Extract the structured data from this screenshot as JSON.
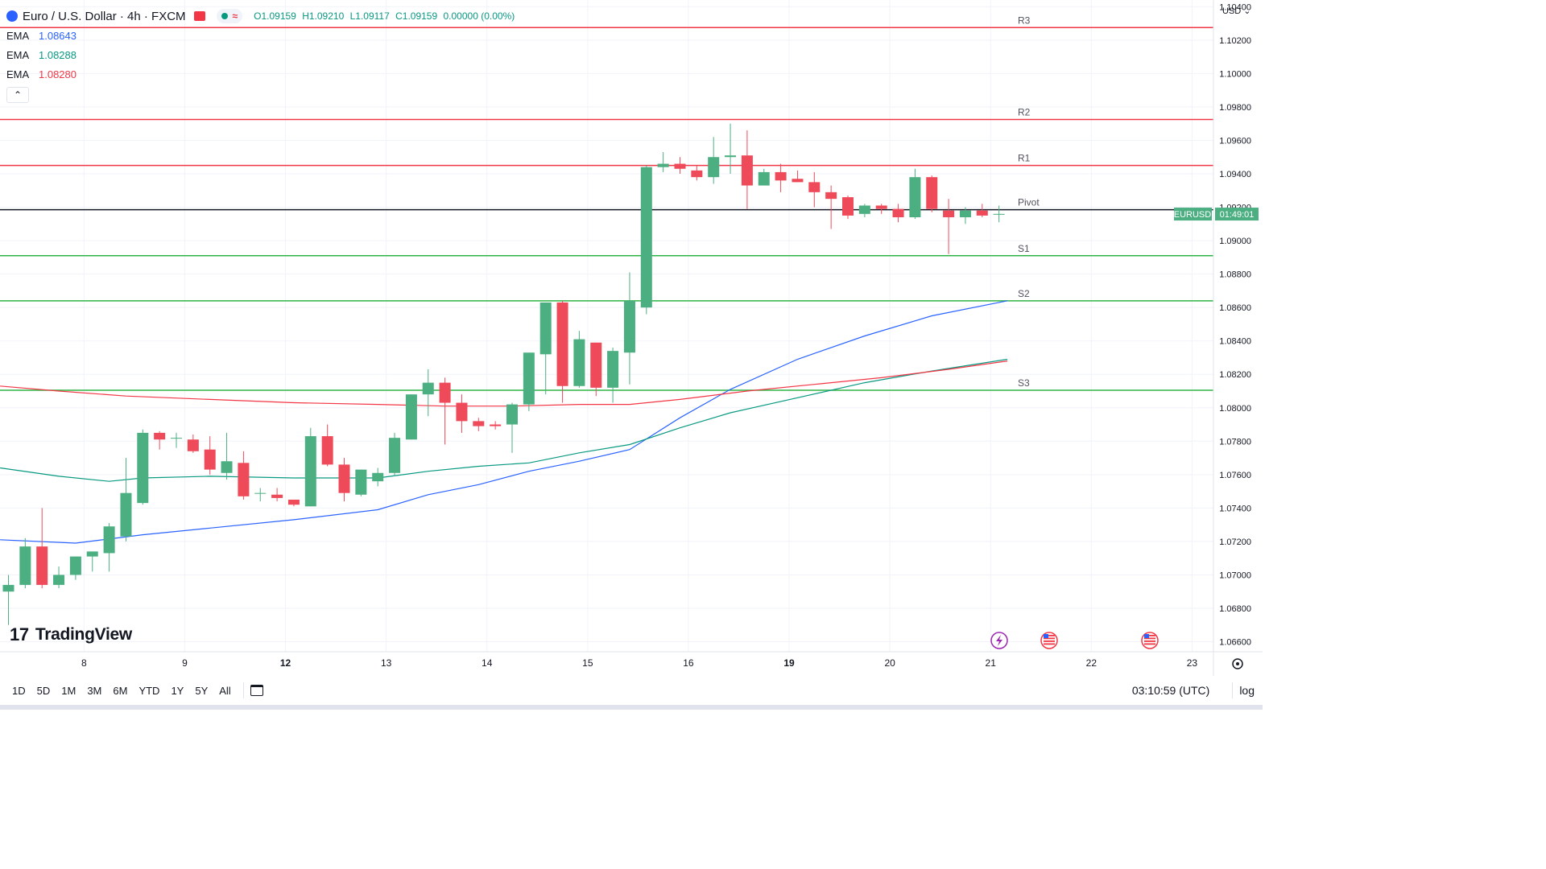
{
  "header": {
    "symbol_title": "Euro / U.S. Dollar · 4h · FXCM",
    "ohlc": {
      "open": "O1.09159",
      "high": "H1.09210",
      "low": "L1.09117",
      "close": "C1.09159",
      "change": "0.00000 (0.00%)"
    }
  },
  "indicators": [
    {
      "name": "EMA",
      "value": "1.08643",
      "color": "#2962ff"
    },
    {
      "name": "EMA",
      "value": "1.08288",
      "color": "#089981"
    },
    {
      "name": "EMA",
      "value": "1.08280",
      "color": "#f23645"
    }
  ],
  "price_axis": {
    "currency": "USD",
    "ticks": [
      "1.10400",
      "1.10200",
      "1.10000",
      "1.09800",
      "1.09600",
      "1.09400",
      "1.09200",
      "1.09000",
      "1.08800",
      "1.08600",
      "1.08400",
      "1.08200",
      "1.08000",
      "1.07800",
      "1.07600",
      "1.07400",
      "1.07200",
      "1.07000",
      "1.06800",
      "1.06600"
    ],
    "symbol_label": "EURUSD",
    "countdown": "01:49:01"
  },
  "time_axis": {
    "ticks": [
      "8",
      "9",
      "12",
      "13",
      "14",
      "15",
      "16",
      "19",
      "20",
      "21",
      "22",
      "23"
    ]
  },
  "bottom_bar": {
    "ranges": [
      "1D",
      "5D",
      "1M",
      "3M",
      "6M",
      "YTD",
      "1Y",
      "5Y",
      "All"
    ],
    "clock": "03:10:59 (UTC)",
    "log_label": "log"
  },
  "branding": {
    "logo_text": "TradingView"
  },
  "colors": {
    "up": "#4caf82",
    "down": "#ef4a5a",
    "resistance": "#f23645",
    "support": "#2fb344",
    "pivot": "#131722"
  },
  "chart_data": {
    "type": "candlestick",
    "ylim": [
      1.0654,
      1.1044
    ],
    "pivot_levels": [
      {
        "label": "R3",
        "value": 1.10275
      },
      {
        "label": "R2",
        "value": 1.09725
      },
      {
        "label": "R1",
        "value": 1.0945
      },
      {
        "label": "Pivot",
        "value": 1.09185
      },
      {
        "label": "S1",
        "value": 1.0891
      },
      {
        "label": "S2",
        "value": 1.0864
      },
      {
        "label": "S3",
        "value": 1.08105
      }
    ],
    "candles": [
      {
        "o": 1.069,
        "h": 1.07,
        "l": 1.067,
        "c": 1.0694
      },
      {
        "o": 1.0694,
        "h": 1.0722,
        "l": 1.0692,
        "c": 1.0717
      },
      {
        "o": 1.0717,
        "h": 1.074,
        "l": 1.0692,
        "c": 1.0694
      },
      {
        "o": 1.0694,
        "h": 1.0705,
        "l": 1.0692,
        "c": 1.07
      },
      {
        "o": 1.07,
        "h": 1.0711,
        "l": 1.0697,
        "c": 1.0711
      },
      {
        "o": 1.0711,
        "h": 1.0714,
        "l": 1.0702,
        "c": 1.0714
      },
      {
        "o": 1.0713,
        "h": 1.0731,
        "l": 1.0702,
        "c": 1.0729
      },
      {
        "o": 1.0723,
        "h": 1.077,
        "l": 1.072,
        "c": 1.0749
      },
      {
        "o": 1.0743,
        "h": 1.0787,
        "l": 1.0742,
        "c": 1.0785
      },
      {
        "o": 1.0785,
        "h": 1.0786,
        "l": 1.0775,
        "c": 1.0781
      },
      {
        "o": 1.0782,
        "h": 1.0785,
        "l": 1.0776,
        "c": 1.0782
      },
      {
        "o": 1.0781,
        "h": 1.0784,
        "l": 1.0773,
        "c": 1.0774
      },
      {
        "o": 1.0775,
        "h": 1.0783,
        "l": 1.076,
        "c": 1.0763
      },
      {
        "o": 1.0761,
        "h": 1.0785,
        "l": 1.0757,
        "c": 1.0768
      },
      {
        "o": 1.0767,
        "h": 1.0774,
        "l": 1.0745,
        "c": 1.0747
      },
      {
        "o": 1.0749,
        "h": 1.0752,
        "l": 1.0744,
        "c": 1.0749
      },
      {
        "o": 1.0748,
        "h": 1.0752,
        "l": 1.0744,
        "c": 1.0746
      },
      {
        "o": 1.0745,
        "h": 1.0745,
        "l": 1.0741,
        "c": 1.0742
      },
      {
        "o": 1.0741,
        "h": 1.0788,
        "l": 1.0741,
        "c": 1.0783
      },
      {
        "o": 1.0783,
        "h": 1.079,
        "l": 1.0765,
        "c": 1.0766
      },
      {
        "o": 1.0766,
        "h": 1.077,
        "l": 1.0744,
        "c": 1.0749
      },
      {
        "o": 1.0748,
        "h": 1.0763,
        "l": 1.0747,
        "c": 1.0763
      },
      {
        "o": 1.0756,
        "h": 1.0764,
        "l": 1.0753,
        "c": 1.0761
      },
      {
        "o": 1.0761,
        "h": 1.0785,
        "l": 1.0759,
        "c": 1.0782
      },
      {
        "o": 1.0781,
        "h": 1.0808,
        "l": 1.0781,
        "c": 1.0808
      },
      {
        "o": 1.0808,
        "h": 1.0823,
        "l": 1.0795,
        "c": 1.0815
      },
      {
        "o": 1.0815,
        "h": 1.0818,
        "l": 1.0778,
        "c": 1.0803
      },
      {
        "o": 1.0803,
        "h": 1.0808,
        "l": 1.0785,
        "c": 1.0792
      },
      {
        "o": 1.0792,
        "h": 1.0794,
        "l": 1.0786,
        "c": 1.0789
      },
      {
        "o": 1.079,
        "h": 1.0792,
        "l": 1.0787,
        "c": 1.0789
      },
      {
        "o": 1.079,
        "h": 1.0803,
        "l": 1.0773,
        "c": 1.0802
      },
      {
        "o": 1.0802,
        "h": 1.0833,
        "l": 1.0798,
        "c": 1.0833
      },
      {
        "o": 1.0832,
        "h": 1.0863,
        "l": 1.0808,
        "c": 1.0863
      },
      {
        "o": 1.0863,
        "h": 1.0864,
        "l": 1.0803,
        "c": 1.0813
      },
      {
        "o": 1.0813,
        "h": 1.0846,
        "l": 1.0812,
        "c": 1.0841
      },
      {
        "o": 1.0839,
        "h": 1.0839,
        "l": 1.0807,
        "c": 1.0812
      },
      {
        "o": 1.0812,
        "h": 1.0836,
        "l": 1.0803,
        "c": 1.0834
      },
      {
        "o": 1.0833,
        "h": 1.0881,
        "l": 1.0814,
        "c": 1.0864
      },
      {
        "o": 1.086,
        "h": 1.0945,
        "l": 1.0856,
        "c": 1.0944
      },
      {
        "o": 1.0944,
        "h": 1.0953,
        "l": 1.0941,
        "c": 1.0946
      },
      {
        "o": 1.0946,
        "h": 1.095,
        "l": 1.094,
        "c": 1.0943
      },
      {
        "o": 1.0942,
        "h": 1.0945,
        "l": 1.0936,
        "c": 1.0938
      },
      {
        "o": 1.0938,
        "h": 1.0962,
        "l": 1.0934,
        "c": 1.095
      },
      {
        "o": 1.095,
        "h": 1.097,
        "l": 1.094,
        "c": 1.0951
      },
      {
        "o": 1.0951,
        "h": 1.0966,
        "l": 1.0919,
        "c": 1.0933
      },
      {
        "o": 1.0933,
        "h": 1.0943,
        "l": 1.0933,
        "c": 1.0941
      },
      {
        "o": 1.0941,
        "h": 1.0946,
        "l": 1.0929,
        "c": 1.0936
      },
      {
        "o": 1.0937,
        "h": 1.0942,
        "l": 1.0935,
        "c": 1.0935
      },
      {
        "o": 1.0935,
        "h": 1.0941,
        "l": 1.092,
        "c": 1.0929
      },
      {
        "o": 1.0929,
        "h": 1.0933,
        "l": 1.0907,
        "c": 1.0925
      },
      {
        "o": 1.0926,
        "h": 1.0927,
        "l": 1.0913,
        "c": 1.0915
      },
      {
        "o": 1.0916,
        "h": 1.0922,
        "l": 1.0914,
        "c": 1.0921
      },
      {
        "o": 1.0921,
        "h": 1.0922,
        "l": 1.0916,
        "c": 1.0919
      },
      {
        "o": 1.0919,
        "h": 1.0922,
        "l": 1.0911,
        "c": 1.0914
      },
      {
        "o": 1.0914,
        "h": 1.0943,
        "l": 1.0913,
        "c": 1.0938
      },
      {
        "o": 1.0938,
        "h": 1.0939,
        "l": 1.0917,
        "c": 1.0919
      },
      {
        "o": 1.0918,
        "h": 1.0925,
        "l": 1.0892,
        "c": 1.0914
      },
      {
        "o": 1.0914,
        "h": 1.092,
        "l": 1.091,
        "c": 1.0918
      },
      {
        "o": 1.0918,
        "h": 1.0922,
        "l": 1.0914,
        "c": 1.0915
      },
      {
        "o": 1.0916,
        "h": 1.0921,
        "l": 1.0911,
        "c": 1.0916
      }
    ],
    "ema_series": [
      {
        "color": "#2962ff",
        "points": [
          [
            -0.5,
            1.0721
          ],
          [
            4,
            1.0719
          ],
          [
            8,
            1.0724
          ],
          [
            12,
            1.0728
          ],
          [
            17,
            1.0733
          ],
          [
            22,
            1.0739
          ],
          [
            25,
            1.0748
          ],
          [
            28,
            1.0754
          ],
          [
            31,
            1.0762
          ],
          [
            34,
            1.0768
          ],
          [
            37,
            1.0775
          ],
          [
            40,
            1.0794
          ],
          [
            43,
            1.0811
          ],
          [
            47,
            1.0829
          ],
          [
            51,
            1.0843
          ],
          [
            55,
            1.0855
          ],
          [
            59.5,
            1.0864
          ]
        ]
      },
      {
        "color": "#089981",
        "points": [
          [
            -0.5,
            1.0764
          ],
          [
            3,
            1.0759
          ],
          [
            6,
            1.0756
          ],
          [
            8,
            1.0758
          ],
          [
            12,
            1.0759
          ],
          [
            17,
            1.0758
          ],
          [
            22,
            1.0758
          ],
          [
            25,
            1.0762
          ],
          [
            28,
            1.0765
          ],
          [
            31,
            1.0767
          ],
          [
            34,
            1.0773
          ],
          [
            37,
            1.0778
          ],
          [
            40,
            1.0788
          ],
          [
            43,
            1.0797
          ],
          [
            47,
            1.0806
          ],
          [
            51,
            1.0815
          ],
          [
            55,
            1.0822
          ],
          [
            59.5,
            1.0829
          ]
        ]
      },
      {
        "color": "#f23645",
        "points": [
          [
            -0.5,
            1.0813
          ],
          [
            3,
            1.081
          ],
          [
            7,
            1.0807
          ],
          [
            12,
            1.0805
          ],
          [
            17,
            1.0803
          ],
          [
            22,
            1.0802
          ],
          [
            26,
            1.0801
          ],
          [
            30,
            1.0801
          ],
          [
            34,
            1.0802
          ],
          [
            37,
            1.0802
          ],
          [
            40,
            1.0805
          ],
          [
            44,
            1.081
          ],
          [
            48,
            1.0814
          ],
          [
            52,
            1.0818
          ],
          [
            56,
            1.0823
          ],
          [
            59.5,
            1.0828
          ]
        ]
      }
    ],
    "time_tick_bar_index": [
      5,
      11,
      17,
      23,
      29,
      35,
      41,
      47,
      53,
      59,
      65,
      71
    ]
  }
}
